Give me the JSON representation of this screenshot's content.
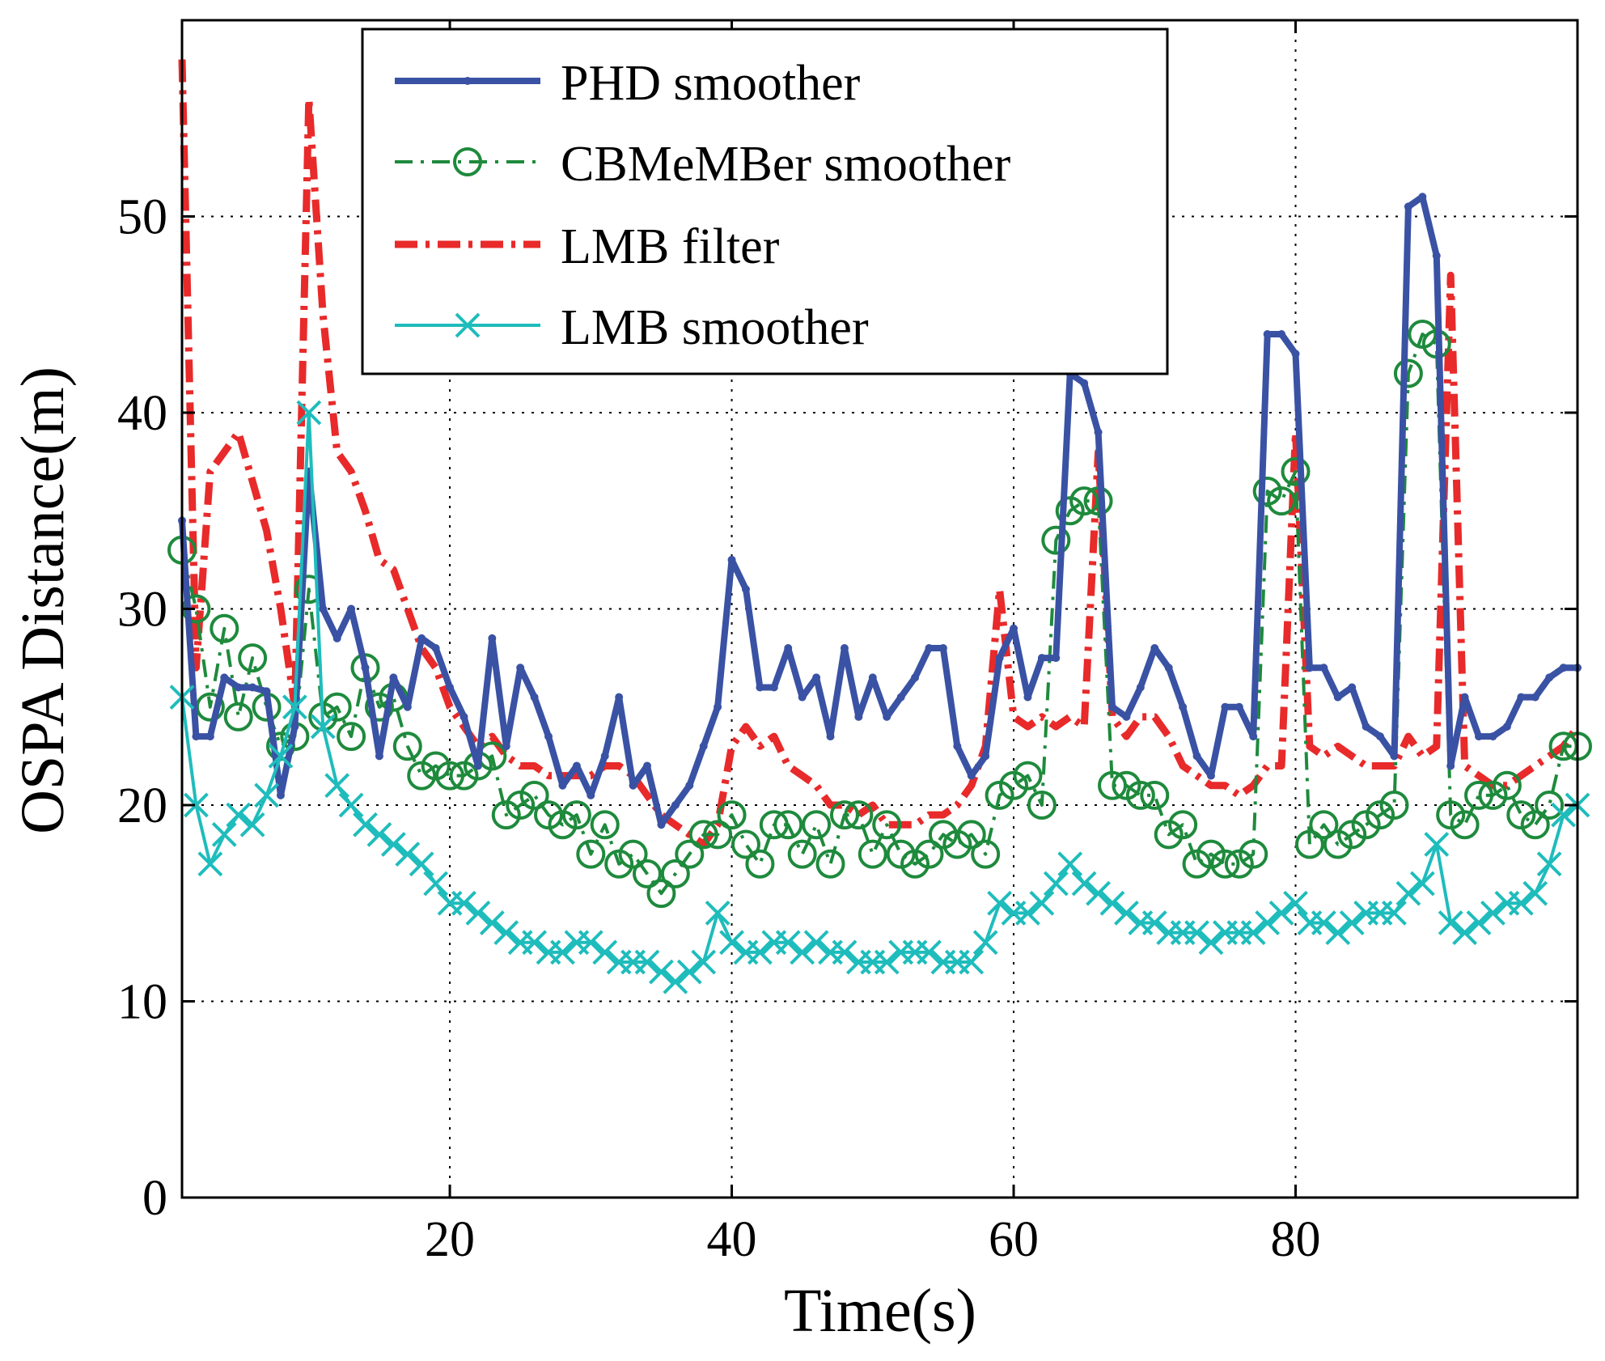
{
  "chart_data": {
    "type": "line",
    "title": "",
    "xlabel": "Time(s)",
    "ylabel": "OSPA Distance(m)",
    "xlim": [
      1,
      100
    ],
    "ylim": [
      0,
      60
    ],
    "xticks": [
      20,
      40,
      60,
      80
    ],
    "yticks": [
      0,
      10,
      20,
      30,
      40,
      50
    ],
    "xtick_labels": [
      "20",
      "40",
      "60",
      "80"
    ],
    "ytick_labels": [
      "0",
      "10",
      "20",
      "30",
      "40",
      "50"
    ],
    "grid": true,
    "legend_position": "top-center",
    "x": [
      1,
      2,
      3,
      4,
      5,
      6,
      7,
      8,
      9,
      10,
      11,
      12,
      13,
      14,
      15,
      16,
      17,
      18,
      19,
      20,
      21,
      22,
      23,
      24,
      25,
      26,
      27,
      28,
      29,
      30,
      31,
      32,
      33,
      34,
      35,
      36,
      37,
      38,
      39,
      40,
      41,
      42,
      43,
      44,
      45,
      46,
      47,
      48,
      49,
      50,
      51,
      52,
      53,
      54,
      55,
      56,
      57,
      58,
      59,
      60,
      61,
      62,
      63,
      64,
      65,
      66,
      67,
      68,
      69,
      70,
      71,
      72,
      73,
      74,
      75,
      76,
      77,
      78,
      79,
      80,
      81,
      82,
      83,
      84,
      85,
      86,
      87,
      88,
      89,
      90,
      91,
      92,
      93,
      94,
      95,
      96,
      97,
      98,
      99,
      100
    ],
    "series": [
      {
        "name": "PHD smoother",
        "color": "#3a52a4",
        "style": "solid",
        "marker": "dot",
        "values": [
          34.5,
          23.5,
          23.5,
          26.5,
          26,
          26,
          25.8,
          20.5,
          24,
          37,
          30,
          28.5,
          30,
          27,
          22.5,
          26.5,
          25,
          28.5,
          28,
          26,
          24.5,
          22,
          28.5,
          23,
          27,
          25.5,
          23.5,
          21,
          22,
          20.5,
          22.5,
          25.5,
          21,
          22,
          19,
          20,
          21,
          23,
          25,
          32.5,
          31,
          26,
          26,
          28,
          25.5,
          26.5,
          23.5,
          28,
          24.5,
          26.5,
          24.5,
          25.5,
          26.5,
          28,
          28,
          23,
          21.5,
          22.5,
          27.5,
          29,
          25.5,
          27.5,
          27.5,
          42,
          41.5,
          39,
          25,
          24.5,
          26,
          28,
          27,
          25,
          22.5,
          21.5,
          25,
          25,
          23.5,
          44,
          44,
          43,
          27,
          27,
          25.5,
          26,
          24,
          23.5,
          22.5,
          50.5,
          51,
          48,
          22,
          25.5,
          23.5,
          23.5,
          24,
          25.5,
          25.5,
          26.5,
          27,
          27
        ]
      },
      {
        "name": "CBMeMBer smoother",
        "color": "#1e8a3c",
        "style": "dashdot",
        "marker": "circle",
        "values": [
          33,
          30,
          25,
          29,
          24.5,
          27.5,
          25,
          23,
          23.5,
          31,
          24.5,
          25,
          23.5,
          27,
          25,
          25.5,
          23,
          21.5,
          22,
          21.5,
          21.5,
          22,
          22.5,
          19.5,
          20,
          20.5,
          19.5,
          19,
          19.5,
          17.5,
          19,
          17,
          17.5,
          16.5,
          15.5,
          16.5,
          17.5,
          18.5,
          18.5,
          19.5,
          18,
          17,
          19,
          19,
          17.5,
          19,
          17,
          19.5,
          19.5,
          17.5,
          19,
          17.5,
          17,
          17.5,
          18.5,
          18,
          18.5,
          17.5,
          20.5,
          21,
          21.5,
          20,
          33.5,
          35,
          35.5,
          35.5,
          21,
          21,
          20.5,
          20.5,
          18.5,
          19,
          17,
          17.5,
          17,
          17,
          17.5,
          36,
          35.5,
          37,
          18,
          19,
          18,
          18.5,
          19,
          19.5,
          20,
          42,
          44,
          43.5,
          19.5,
          19,
          20.5,
          20.5,
          21,
          19.5,
          19,
          20,
          23,
          23
        ]
      },
      {
        "name": "LMB filter",
        "color": "#e82a2a",
        "style": "dashdot",
        "marker": "none",
        "values": [
          58,
          27,
          37,
          38,
          39,
          36.5,
          34,
          30,
          25,
          56,
          45,
          38,
          37,
          35,
          32.5,
          32,
          30,
          28,
          27,
          25,
          24,
          23,
          23.5,
          22.5,
          22,
          22,
          21.5,
          21.5,
          21.5,
          21.5,
          22,
          22,
          21.5,
          20.5,
          19.5,
          19,
          18.5,
          18,
          19,
          23,
          24,
          23,
          23.5,
          22,
          21.5,
          21,
          20,
          20,
          19.5,
          20,
          19,
          19,
          19,
          19.5,
          19.5,
          20,
          21,
          23,
          31,
          24.5,
          24,
          24.5,
          24,
          24.5,
          24,
          38,
          24.5,
          23.5,
          24.5,
          24.5,
          23.5,
          22,
          21.5,
          21,
          21,
          20.5,
          21,
          22,
          22,
          39,
          23,
          22.5,
          23,
          22.5,
          22,
          22,
          22,
          23.5,
          22.5,
          23,
          47,
          22,
          21.5,
          21,
          21,
          21.5,
          22,
          22.5,
          23,
          24
        ]
      },
      {
        "name": "LMB smoother",
        "color": "#1fbcbc",
        "style": "solid",
        "marker": "x",
        "values": [
          25.5,
          20,
          17,
          18.5,
          19.5,
          19,
          20.5,
          22.5,
          25,
          40,
          24,
          21,
          20,
          19,
          18.5,
          18,
          17.5,
          17,
          16,
          15,
          15,
          14.5,
          14,
          13.5,
          13,
          13,
          12.5,
          12.5,
          13,
          13,
          12.5,
          12,
          12,
          12,
          11.5,
          11,
          11.5,
          12,
          14.5,
          13,
          12.5,
          12.5,
          13,
          13,
          12.5,
          13,
          12.5,
          12.5,
          12,
          12,
          12,
          12.5,
          12.5,
          12.5,
          12,
          12,
          12,
          13,
          15,
          14.5,
          14.5,
          15,
          16,
          17,
          16,
          15.5,
          15,
          14.5,
          14,
          14,
          13.5,
          13.5,
          13.5,
          13,
          13.5,
          13.5,
          13.5,
          14,
          14.5,
          15,
          14,
          14,
          13.5,
          14,
          14.5,
          14.5,
          14.5,
          15.5,
          16,
          18,
          14,
          13.5,
          14,
          14.5,
          15,
          15,
          15.5,
          17,
          19.5,
          20
        ]
      }
    ]
  }
}
